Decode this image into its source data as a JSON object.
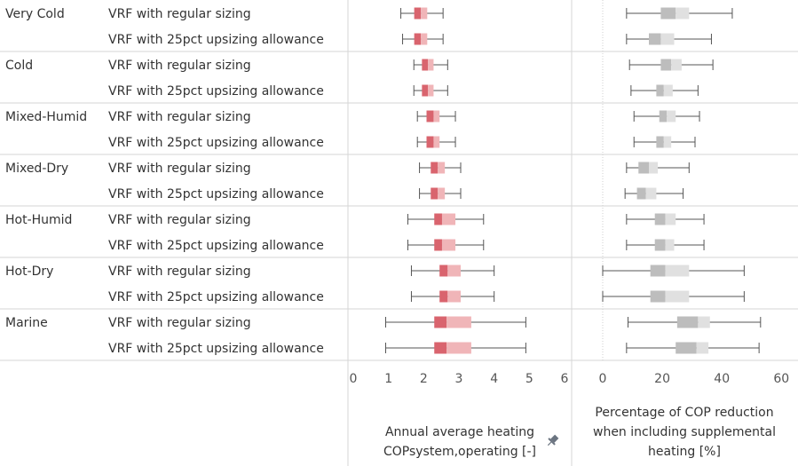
{
  "chart_data": [
    {
      "type": "boxplot",
      "xlabel_lines": [
        "Annual average heating",
        "COPsystem,operating [-]"
      ],
      "xlim": [
        0,
        6
      ],
      "ticks": [
        0,
        1,
        2,
        3,
        4,
        5,
        6
      ],
      "box_colors": {
        "lower": "#d9646e",
        "upper": "#f0b5b8",
        "whisker": "#555555"
      },
      "pin_icon": "pin-icon",
      "climate_zones": [
        "Very Cold",
        "Cold",
        "Mixed-Humid",
        "Mixed-Dry",
        "Hot-Humid",
        "Hot-Dry",
        "Marine"
      ],
      "series": [
        "VRF with regular sizing",
        "VRF with 25pct upsizing allowance"
      ],
      "boxes": [
        {
          "min": 1.35,
          "q1": 1.73,
          "median": 1.92,
          "q3": 2.1,
          "max": 2.55
        },
        {
          "min": 1.4,
          "q1": 1.73,
          "median": 1.92,
          "q3": 2.1,
          "max": 2.55
        },
        {
          "min": 1.72,
          "q1": 1.95,
          "median": 2.12,
          "q3": 2.28,
          "max": 2.68
        },
        {
          "min": 1.72,
          "q1": 1.95,
          "median": 2.12,
          "q3": 2.28,
          "max": 2.68
        },
        {
          "min": 1.82,
          "q1": 2.08,
          "median": 2.28,
          "q3": 2.45,
          "max": 2.9
        },
        {
          "min": 1.82,
          "q1": 2.08,
          "median": 2.28,
          "q3": 2.45,
          "max": 2.9
        },
        {
          "min": 1.88,
          "q1": 2.2,
          "median": 2.4,
          "q3": 2.6,
          "max": 3.05
        },
        {
          "min": 1.88,
          "q1": 2.2,
          "median": 2.4,
          "q3": 2.6,
          "max": 3.05
        },
        {
          "min": 1.55,
          "q1": 2.3,
          "median": 2.52,
          "q3": 2.9,
          "max": 3.7
        },
        {
          "min": 1.55,
          "q1": 2.3,
          "median": 2.52,
          "q3": 2.9,
          "max": 3.7
        },
        {
          "min": 1.65,
          "q1": 2.45,
          "median": 2.68,
          "q3": 3.05,
          "max": 4.0
        },
        {
          "min": 1.65,
          "q1": 2.45,
          "median": 2.68,
          "q3": 3.05,
          "max": 4.0
        },
        {
          "min": 0.92,
          "q1": 2.3,
          "median": 2.65,
          "q3": 3.35,
          "max": 4.9
        },
        {
          "min": 0.92,
          "q1": 2.3,
          "median": 2.65,
          "q3": 3.35,
          "max": 4.9
        }
      ]
    },
    {
      "type": "boxplot",
      "xlabel_lines": [
        "Percentage of COP reduction",
        "when including supplemental",
        "heating [%]"
      ],
      "xlim": [
        -5.5,
        64
      ],
      "ticks": [
        0,
        20,
        40,
        60
      ],
      "zero_reference_line": true,
      "box_colors": {
        "lower": "#bdbdbd",
        "upper": "#e0e0e0",
        "whisker": "#555555"
      },
      "boxes": [
        {
          "min": 8,
          "q1": 19.5,
          "median": 24.5,
          "q3": 29,
          "max": 43.5
        },
        {
          "min": 8,
          "q1": 15.5,
          "median": 19.5,
          "q3": 24,
          "max": 36.5
        },
        {
          "min": 9,
          "q1": 19.5,
          "median": 23,
          "q3": 26.5,
          "max": 37
        },
        {
          "min": 9.5,
          "q1": 18,
          "median": 20.5,
          "q3": 23.5,
          "max": 32
        },
        {
          "min": 10.5,
          "q1": 19,
          "median": 21.5,
          "q3": 24.5,
          "max": 32.5
        },
        {
          "min": 10.5,
          "q1": 18,
          "median": 20.5,
          "q3": 23,
          "max": 31
        },
        {
          "min": 8,
          "q1": 12,
          "median": 15.5,
          "q3": 18.5,
          "max": 29
        },
        {
          "min": 7.5,
          "q1": 11.5,
          "median": 14.5,
          "q3": 18,
          "max": 27
        },
        {
          "min": 8,
          "q1": 17.5,
          "median": 21,
          "q3": 24.5,
          "max": 34
        },
        {
          "min": 8,
          "q1": 17.5,
          "median": 21,
          "q3": 24,
          "max": 34
        },
        {
          "min": 0,
          "q1": 16,
          "median": 21,
          "q3": 29,
          "max": 47.5
        },
        {
          "min": 0,
          "q1": 16,
          "median": 21,
          "q3": 29,
          "max": 47.5
        },
        {
          "min": 8.5,
          "q1": 25,
          "median": 32,
          "q3": 36,
          "max": 53
        },
        {
          "min": 8,
          "q1": 24.5,
          "median": 31.5,
          "q3": 35.5,
          "max": 52.5
        }
      ]
    }
  ]
}
